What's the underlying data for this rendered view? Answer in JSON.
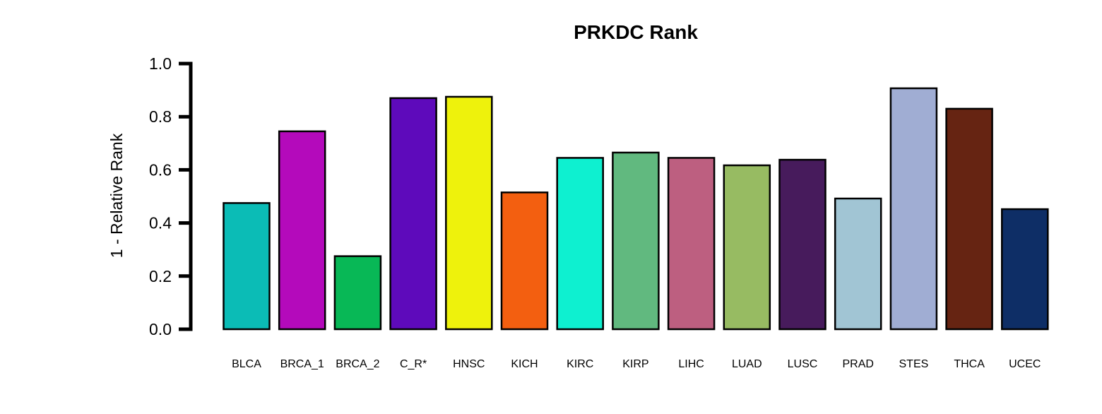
{
  "chart_data": {
    "type": "bar",
    "title": "PRKDC Rank",
    "xlabel": "",
    "ylabel": "1 - Relative Rank",
    "ylim": [
      0,
      1
    ],
    "yticks": [
      "0.0",
      "0.2",
      "0.4",
      "0.6",
      "0.8",
      "1.0"
    ],
    "grid": false,
    "legend": "none",
    "categories": [
      "BLCA",
      "BRCA_1",
      "BRCA_2",
      "C_R*",
      "HNSC",
      "KICH",
      "KIRC",
      "KIRP",
      "LIHC",
      "LUAD",
      "LUSC",
      "PRAD",
      "STES",
      "THCA",
      "UCEC"
    ],
    "values": [
      0.475,
      0.745,
      0.275,
      0.87,
      0.875,
      0.515,
      0.645,
      0.665,
      0.645,
      0.617,
      0.638,
      0.492,
      0.907,
      0.83,
      0.452
    ],
    "colors": [
      "#0bbcb6",
      "#b40abb",
      "#08b856",
      "#5e0abb",
      "#eef20c",
      "#f35f10",
      "#0ef0d0",
      "#61b97f",
      "#bd5f80",
      "#97bb62",
      "#471b5c",
      "#a1c5d4",
      "#a0add3",
      "#662412",
      "#0e2e66"
    ]
  }
}
